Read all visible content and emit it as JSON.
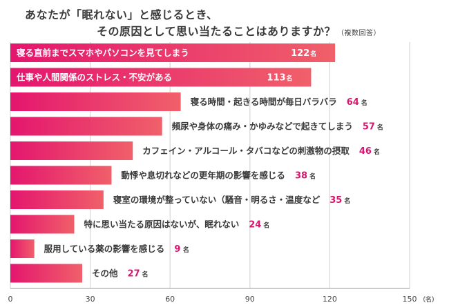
{
  "title": {
    "line1": "あなたが「眠れない」と感じるとき、",
    "line2": "その原因として思い当たることはありますか？",
    "note": "（複数回答）"
  },
  "chart_data": {
    "type": "bar",
    "orientation": "horizontal",
    "categories": [
      "寝る直前までスマホやパソコンを見てしまう",
      "仕事や人間関係のストレス・不安がある",
      "寝る時間・起きる時間が毎日バラバラ",
      "頻尿や身体の痛み・かゆみなどで起きてしまう",
      "カフェイン・アルコール・タバコなどの刺激物の摂取",
      "動悸や息切れなどの更年期の影響を感じる",
      "寝室の環境が整っていない（騒音・明るさ・温度など",
      "特に思い当たる原因はないが、眠れない",
      "服用している薬の影響を感じる",
      "その他"
    ],
    "values": [
      122,
      113,
      64,
      57,
      46,
      38,
      35,
      24,
      9,
      27
    ],
    "value_unit": "名",
    "xlim": [
      0,
      150
    ],
    "xticks": [
      0,
      30,
      60,
      90,
      120,
      150
    ],
    "x_unit": "（名）",
    "grid": true,
    "colors": {
      "bar_start": "#e4166e",
      "bar_end": "#f0606a",
      "value_text": "#d6166e",
      "label_light": "#ffffff",
      "label_dark": "#3a3a3a"
    }
  }
}
